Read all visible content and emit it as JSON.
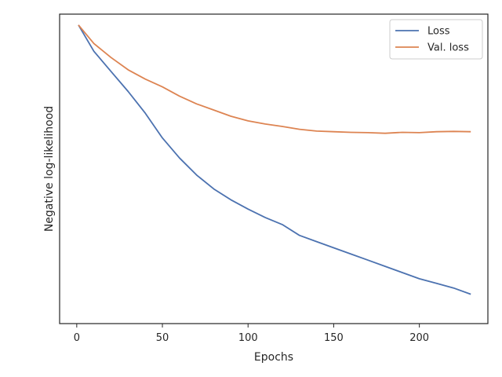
{
  "chart_data": {
    "type": "line",
    "xlabel": "Epochs",
    "ylabel": "Negative log-likelihood",
    "xlim": [
      -10,
      240
    ],
    "ylim": [
      0,
      1
    ],
    "x_ticks": [
      0,
      50,
      100,
      150,
      200
    ],
    "y_ticks_shown": false,
    "grid": false,
    "legend_position": "top-right",
    "series": [
      {
        "name": "Loss",
        "color": "#4c72b0",
        "x": [
          1,
          10,
          20,
          30,
          40,
          50,
          60,
          70,
          80,
          90,
          100,
          110,
          120,
          130,
          140,
          150,
          160,
          170,
          180,
          190,
          200,
          210,
          220,
          230
        ],
        "y": [
          0.965,
          0.88,
          0.815,
          0.75,
          0.68,
          0.6,
          0.535,
          0.48,
          0.435,
          0.4,
          0.37,
          0.343,
          0.32,
          0.285,
          0.265,
          0.245,
          0.225,
          0.205,
          0.185,
          0.165,
          0.145,
          0.13,
          0.115,
          0.095
        ]
      },
      {
        "name": "Val. loss",
        "color": "#dd8452",
        "x": [
          1,
          10,
          20,
          30,
          40,
          50,
          60,
          70,
          80,
          90,
          100,
          110,
          120,
          130,
          140,
          150,
          160,
          170,
          180,
          190,
          200,
          210,
          220,
          230
        ],
        "y": [
          0.965,
          0.905,
          0.86,
          0.82,
          0.79,
          0.765,
          0.735,
          0.71,
          0.69,
          0.67,
          0.655,
          0.645,
          0.637,
          0.628,
          0.622,
          0.62,
          0.618,
          0.617,
          0.615,
          0.618,
          0.617,
          0.62,
          0.621,
          0.62
        ]
      }
    ]
  }
}
